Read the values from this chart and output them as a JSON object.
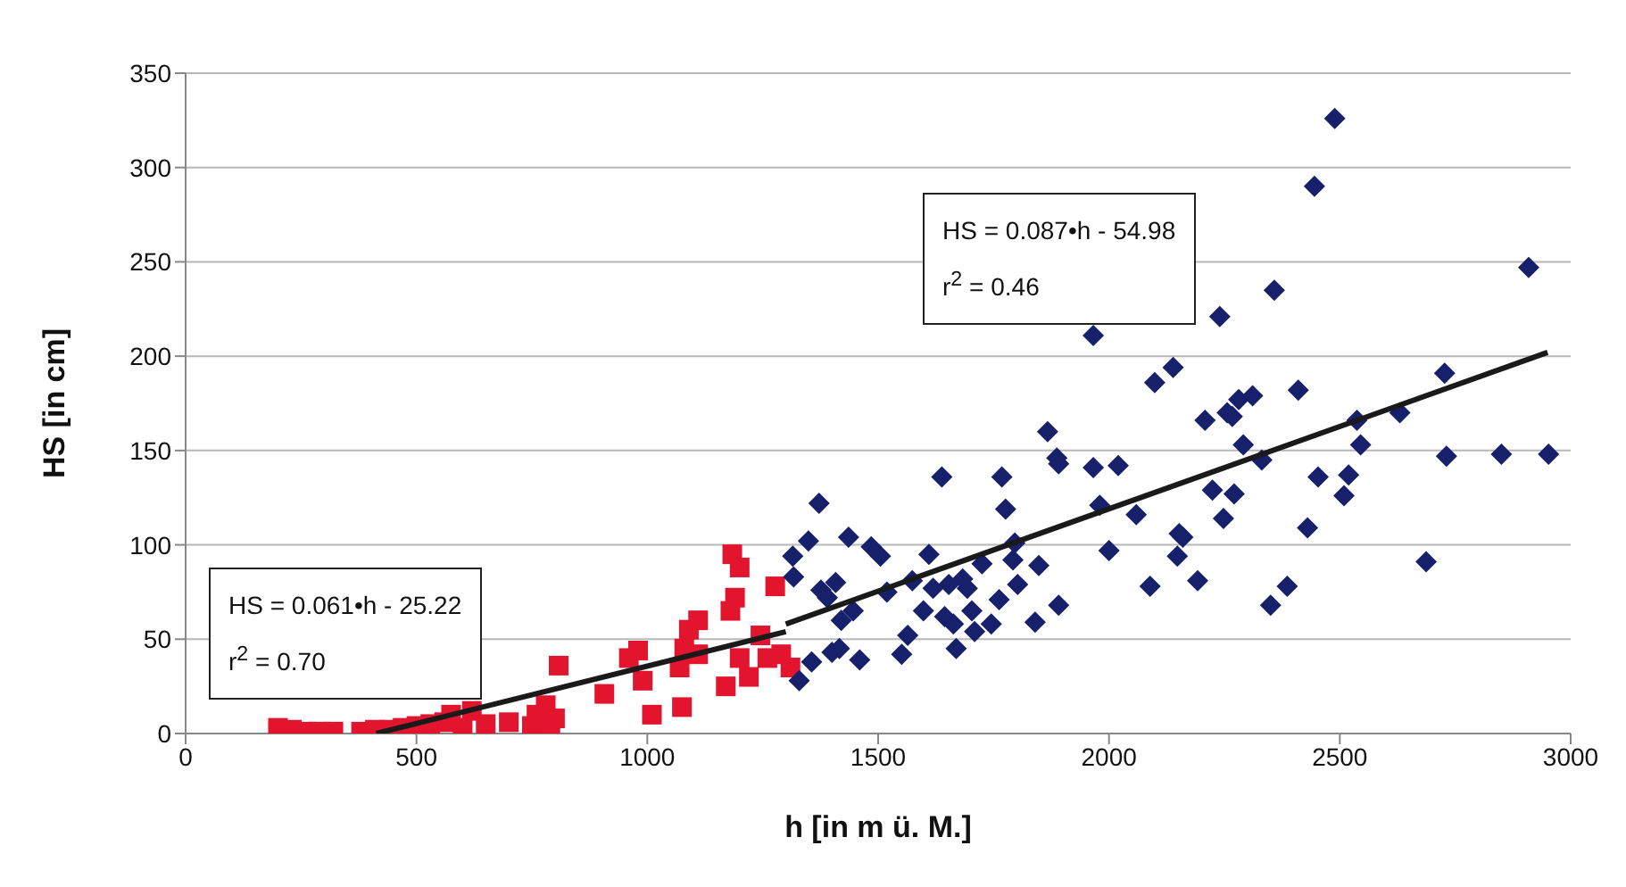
{
  "chart_data": {
    "type": "scatter",
    "xlabel": "h [in m ü. M.]",
    "ylabel": "HS [in cm]",
    "xlim": [
      0,
      3000
    ],
    "xticks": [
      0,
      500,
      1000,
      1500,
      2000,
      2500,
      3000
    ],
    "ylim": [
      0,
      350
    ],
    "yticks": [
      0,
      50,
      100,
      150,
      200,
      250,
      300,
      350
    ],
    "grid": "y",
    "legend": false,
    "annotations": [
      "HS = 0.061•h - 25.22\nr$^{2}$ = 0.70",
      "HS = 0.087•h - 54.98\nr$^{2}$ = 0.46"
    ],
    "series": [
      {
        "marker": "square",
        "color": "#e3142e",
        "x": [
          200,
          230,
          260,
          290,
          320,
          380,
          410,
          440,
          470,
          500,
          530,
          560,
          575,
          620,
          650,
          600,
          700,
          750,
          760,
          780,
          790,
          800,
          808,
          907,
          960,
          980,
          990,
          1010,
          1070,
          1075,
          1080,
          1090,
          1110,
          1110,
          1170,
          1180,
          1190,
          1184,
          1200,
          1200,
          1220,
          1260,
          1245,
          1277,
          1290,
          1310
        ],
        "values": [
          3,
          2,
          1,
          1,
          1,
          1,
          2,
          2,
          3,
          4,
          5,
          6,
          10,
          12,
          5,
          3,
          6,
          4,
          10,
          15,
          2,
          8,
          36,
          21,
          40,
          44,
          28,
          10,
          35,
          14,
          45,
          55,
          60,
          42,
          25,
          65,
          72,
          95,
          88,
          40,
          30,
          40,
          52,
          78,
          42,
          35
        ]
      },
      {
        "marker": "diamond",
        "color": "#16206b",
        "x": [
          1315,
          1317,
          1329,
          1349,
          1356,
          1372,
          1376,
          1390,
          1400,
          1408,
          1416,
          1420,
          1436,
          1446,
          1460,
          1485,
          1505,
          1519,
          1551,
          1564,
          1574,
          1598,
          1610,
          1619,
          1638,
          1644,
          1653,
          1663,
          1669,
          1683,
          1693,
          1703,
          1709,
          1725,
          1745,
          1762,
          1768,
          1776,
          1792,
          1796,
          1802,
          1840,
          1848,
          1867,
          1887,
          1891,
          1891,
          1966,
          1966,
          1980,
          2000,
          2020,
          2059,
          2089,
          2099,
          2139,
          2152,
          2160,
          2148,
          2192,
          2208,
          2224,
          2240,
          2248,
          2256,
          2267,
          2271,
          2281,
          2291,
          2311,
          2331,
          2350,
          2358,
          2386,
          2410,
          2430,
          2445,
          2453,
          2489,
          2509,
          2519,
          2537,
          2545,
          2630,
          2687,
          2727,
          2731,
          2850,
          2909,
          2952
        ],
        "values": [
          94,
          83,
          28,
          102,
          38,
          122,
          76,
          72,
          43,
          80,
          45,
          60,
          104,
          65,
          39,
          99,
          94,
          75,
          42,
          52,
          81,
          65,
          95,
          77,
          136,
          62,
          79,
          58,
          45,
          82,
          77,
          65,
          54,
          90,
          58,
          71,
          136,
          119,
          92,
          101,
          79,
          59,
          89,
          160,
          146,
          143,
          68,
          211,
          141,
          121,
          97,
          142,
          116,
          78,
          186,
          194,
          106,
          104,
          94,
          81,
          166,
          129,
          221,
          114,
          170,
          168,
          127,
          177,
          153,
          179,
          145,
          68,
          235,
          78,
          182,
          109,
          290,
          136,
          326,
          126,
          137,
          166,
          153,
          170,
          91,
          191,
          147,
          148,
          247,
          148
        ]
      },
      {
        "type": "line",
        "marker": "none",
        "color": "#1a1a1a",
        "x": [
          413,
          1300
        ],
        "values": [
          0,
          54
        ]
      },
      {
        "type": "line",
        "marker": "none",
        "color": "#1a1a1a",
        "x": [
          1300,
          2950
        ],
        "values": [
          58,
          202
        ]
      }
    ]
  }
}
